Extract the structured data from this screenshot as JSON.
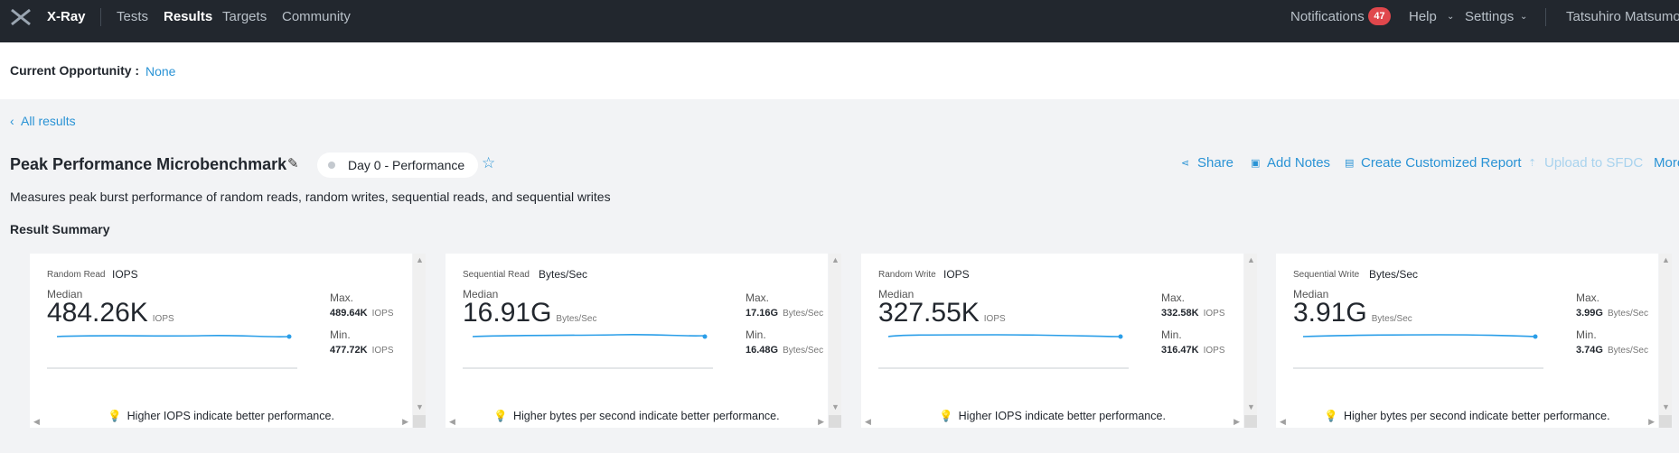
{
  "nav": {
    "brand": "X-Ray",
    "links": [
      "Tests",
      "Results",
      "Targets",
      "Community"
    ],
    "notifications": "Notifications",
    "notification_count": 47,
    "help": "Help",
    "settings": "Settings",
    "user": "Tatsuhiro Matsumoto"
  },
  "opportunity": {
    "label": "Current Opportunity :",
    "value": "None"
  },
  "back_link": "All results",
  "header": {
    "title": "Peak Performance Microbenchmark",
    "tag": "Day 0 - Performance",
    "actions": [
      "Share",
      "Add Notes",
      "Create Customized Report",
      "Upload to SFDC",
      "More"
    ],
    "description": "Measures peak burst performance of random reads, random writes, sequential reads, and sequential writes"
  },
  "section_title": "Result Summary",
  "cards": [
    {
      "name": "Random Read",
      "unit": "IOPS",
      "median_label": "Median",
      "median": "484.26K",
      "median_unit": "IOPS",
      "max_label": "Max.",
      "max": "489.64K",
      "max_unit": "IOPS",
      "min_label": "Min.",
      "min": "477.72K",
      "min_unit": "IOPS",
      "hint": "Higher IOPS indicate better performance."
    },
    {
      "name": "Sequential Read",
      "unit": "Bytes/Sec",
      "median_label": "Median",
      "median": "16.91G",
      "median_unit": "Bytes/Sec",
      "max_label": "Max.",
      "max": "17.16G",
      "max_unit": "Bytes/Sec",
      "min_label": "Min.",
      "min": "16.48G",
      "min_unit": "Bytes/Sec",
      "hint": "Higher bytes per second indicate better performance."
    },
    {
      "name": "Random Write",
      "unit": "IOPS",
      "median_label": "Median",
      "median": "327.55K",
      "median_unit": "IOPS",
      "max_label": "Max.",
      "max": "332.58K",
      "max_unit": "IOPS",
      "min_label": "Min.",
      "min": "316.47K",
      "min_unit": "IOPS",
      "hint": "Higher IOPS indicate better performance."
    },
    {
      "name": "Sequential Write",
      "unit": "Bytes/Sec",
      "median_label": "Median",
      "median": "3.91G",
      "median_unit": "Bytes/Sec",
      "max_label": "Max.",
      "max": "3.99G",
      "max_unit": "Bytes/Sec",
      "min_label": "Min.",
      "min": "3.74G",
      "min_unit": "Bytes/Sec",
      "hint": "Higher bytes per second indicate better performance."
    }
  ]
}
